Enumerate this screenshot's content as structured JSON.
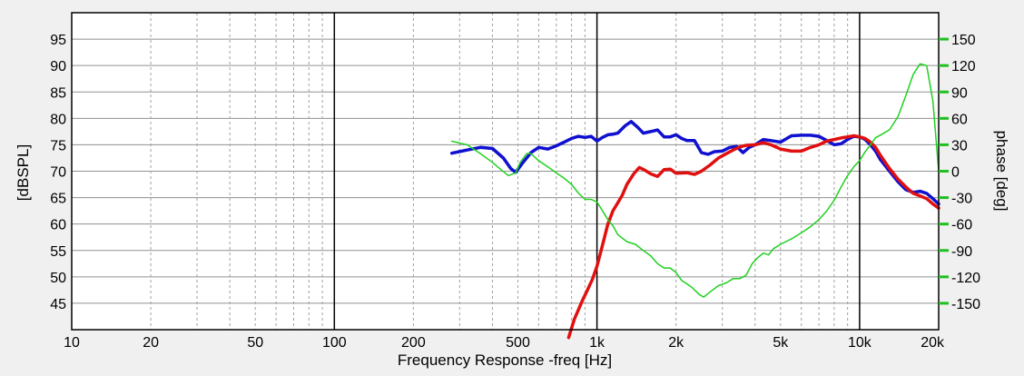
{
  "chart_data": {
    "type": "line",
    "title": "",
    "xlabel": "Frequency Response -freq [Hz]",
    "ylabel": "[dBSPL]",
    "y2label": "phase [deg]",
    "xscale": "log",
    "xlim": [
      10,
      20000
    ],
    "ylim": [
      40,
      100
    ],
    "y2lim": [
      -180,
      180
    ],
    "x_ticks": [
      {
        "value": 10,
        "label": "10"
      },
      {
        "value": 20,
        "label": "20"
      },
      {
        "value": 50,
        "label": "50"
      },
      {
        "value": 100,
        "label": "100"
      },
      {
        "value": 200,
        "label": "200"
      },
      {
        "value": 500,
        "label": "500"
      },
      {
        "value": 1000,
        "label": "1k"
      },
      {
        "value": 2000,
        "label": "2k"
      },
      {
        "value": 5000,
        "label": "5k"
      },
      {
        "value": 10000,
        "label": "10k"
      },
      {
        "value": 20000,
        "label": "20k"
      }
    ],
    "y_ticks": [
      {
        "value": 45,
        "label": "45"
      },
      {
        "value": 50,
        "label": "50"
      },
      {
        "value": 55,
        "label": "55"
      },
      {
        "value": 60,
        "label": "60"
      },
      {
        "value": 65,
        "label": "65"
      },
      {
        "value": 70,
        "label": "70"
      },
      {
        "value": 75,
        "label": "75"
      },
      {
        "value": 80,
        "label": "80"
      },
      {
        "value": 85,
        "label": "85"
      },
      {
        "value": 90,
        "label": "90"
      },
      {
        "value": 95,
        "label": "95"
      }
    ],
    "y2_ticks": [
      {
        "value": 150,
        "label": "150"
      },
      {
        "value": 120,
        "label": "120"
      },
      {
        "value": 90,
        "label": "90"
      },
      {
        "value": 60,
        "label": "60"
      },
      {
        "value": 30,
        "label": "30"
      },
      {
        "value": 0,
        "label": "0"
      },
      {
        "value": -30,
        "label": "-30"
      },
      {
        "value": -60,
        "label": "-60"
      },
      {
        "value": -90,
        "label": "-90"
      },
      {
        "value": -120,
        "label": "-120"
      },
      {
        "value": -150,
        "label": "-150"
      }
    ],
    "series": [
      {
        "name": "SPL (blue)",
        "axis": "left",
        "color": "#1010d0",
        "width": 3.5,
        "points": [
          [
            280,
            73.4
          ],
          [
            320,
            74
          ],
          [
            360,
            74.5
          ],
          [
            400,
            74.3
          ],
          [
            440,
            72.5
          ],
          [
            470,
            70.5
          ],
          [
            490,
            69.8
          ],
          [
            520,
            71.5
          ],
          [
            560,
            73.5
          ],
          [
            600,
            74.5
          ],
          [
            650,
            74.2
          ],
          [
            700,
            74.8
          ],
          [
            750,
            75.5
          ],
          [
            800,
            76.2
          ],
          [
            850,
            76.6
          ],
          [
            900,
            76.4
          ],
          [
            950,
            76.6
          ],
          [
            1000,
            75.7
          ],
          [
            1050,
            76.4
          ],
          [
            1100,
            76.9
          ],
          [
            1150,
            77
          ],
          [
            1200,
            77.2
          ],
          [
            1280,
            78.6
          ],
          [
            1350,
            79.4
          ],
          [
            1430,
            78.3
          ],
          [
            1500,
            77.2
          ],
          [
            1600,
            77.5
          ],
          [
            1700,
            77.8
          ],
          [
            1800,
            76.5
          ],
          [
            1900,
            76.5
          ],
          [
            2000,
            76.9
          ],
          [
            2100,
            76.2
          ],
          [
            2200,
            75.8
          ],
          [
            2350,
            75.8
          ],
          [
            2500,
            73.5
          ],
          [
            2650,
            73.2
          ],
          [
            2800,
            73.7
          ],
          [
            3000,
            73.8
          ],
          [
            3200,
            74.5
          ],
          [
            3400,
            74.7
          ],
          [
            3600,
            73.5
          ],
          [
            3800,
            74.5
          ],
          [
            4000,
            75
          ],
          [
            4300,
            76
          ],
          [
            4600,
            75.8
          ],
          [
            5000,
            75.5
          ],
          [
            5500,
            76.7
          ],
          [
            6000,
            76.8
          ],
          [
            6500,
            76.8
          ],
          [
            7000,
            76.6
          ],
          [
            7500,
            75.8
          ],
          [
            8000,
            75
          ],
          [
            8500,
            75.2
          ],
          [
            9000,
            76
          ],
          [
            9500,
            76.6
          ],
          [
            10000,
            76.5
          ],
          [
            10500,
            76
          ],
          [
            11000,
            75
          ],
          [
            11500,
            73.8
          ],
          [
            12000,
            72.2
          ],
          [
            13000,
            70
          ],
          [
            14000,
            68
          ],
          [
            15000,
            66.5
          ],
          [
            16000,
            66
          ],
          [
            17000,
            66.2
          ],
          [
            18000,
            65.8
          ],
          [
            19000,
            64.8
          ],
          [
            20000,
            63.8
          ]
        ]
      },
      {
        "name": "SPL (red)",
        "axis": "left",
        "color": "#e01010",
        "width": 3.5,
        "points": [
          [
            780,
            38.5
          ],
          [
            820,
            42
          ],
          [
            880,
            45.5
          ],
          [
            920,
            47.5
          ],
          [
            960,
            49.5
          ],
          [
            1000,
            52
          ],
          [
            1050,
            56
          ],
          [
            1100,
            60
          ],
          [
            1150,
            62.5
          ],
          [
            1200,
            64
          ],
          [
            1250,
            65.5
          ],
          [
            1300,
            67.5
          ],
          [
            1380,
            69.5
          ],
          [
            1450,
            70.7
          ],
          [
            1520,
            70.2
          ],
          [
            1600,
            69.5
          ],
          [
            1700,
            69
          ],
          [
            1800,
            70.3
          ],
          [
            1900,
            70.4
          ],
          [
            2000,
            69.6
          ],
          [
            2200,
            69.7
          ],
          [
            2350,
            69.4
          ],
          [
            2500,
            70
          ],
          [
            2700,
            71.2
          ],
          [
            2900,
            72.5
          ],
          [
            3100,
            73.3
          ],
          [
            3300,
            74
          ],
          [
            3500,
            74.6
          ],
          [
            3700,
            74.9
          ],
          [
            4000,
            75
          ],
          [
            4300,
            75.4
          ],
          [
            4600,
            75
          ],
          [
            5000,
            74.2
          ],
          [
            5500,
            73.8
          ],
          [
            6000,
            73.8
          ],
          [
            6500,
            74.5
          ],
          [
            7000,
            75
          ],
          [
            7500,
            75.7
          ],
          [
            8000,
            76
          ],
          [
            8500,
            76.3
          ],
          [
            9000,
            76.5
          ],
          [
            9500,
            76.7
          ],
          [
            10000,
            76.5
          ],
          [
            10500,
            76.2
          ],
          [
            11000,
            75.5
          ],
          [
            11500,
            74.5
          ],
          [
            12000,
            73
          ],
          [
            13000,
            70.5
          ],
          [
            14000,
            68.5
          ],
          [
            15000,
            67
          ],
          [
            16000,
            65.8
          ],
          [
            17000,
            65.3
          ],
          [
            18000,
            64.8
          ],
          [
            19000,
            63.8
          ],
          [
            20000,
            63
          ]
        ]
      },
      {
        "name": "phase (green)",
        "axis": "right",
        "color": "#20d020",
        "width": 1.5,
        "points": [
          [
            280,
            34
          ],
          [
            320,
            30
          ],
          [
            360,
            20
          ],
          [
            400,
            10
          ],
          [
            430,
            2
          ],
          [
            460,
            -5
          ],
          [
            490,
            -2
          ],
          [
            510,
            10
          ],
          [
            540,
            20
          ],
          [
            560,
            20
          ],
          [
            600,
            12
          ],
          [
            650,
            5
          ],
          [
            700,
            -2
          ],
          [
            750,
            -8
          ],
          [
            800,
            -15
          ],
          [
            850,
            -25
          ],
          [
            900,
            -32
          ],
          [
            950,
            -32
          ],
          [
            1000,
            -35
          ],
          [
            1050,
            -45
          ],
          [
            1100,
            -55
          ],
          [
            1150,
            -62
          ],
          [
            1200,
            -72
          ],
          [
            1300,
            -80
          ],
          [
            1400,
            -83
          ],
          [
            1500,
            -90
          ],
          [
            1600,
            -96
          ],
          [
            1700,
            -105
          ],
          [
            1800,
            -110
          ],
          [
            1900,
            -110
          ],
          [
            2000,
            -115
          ],
          [
            2100,
            -124
          ],
          [
            2200,
            -128
          ],
          [
            2300,
            -132
          ],
          [
            2450,
            -140
          ],
          [
            2550,
            -143
          ],
          [
            2700,
            -137
          ],
          [
            2900,
            -130
          ],
          [
            3100,
            -127
          ],
          [
            3300,
            -122
          ],
          [
            3500,
            -122
          ],
          [
            3700,
            -118
          ],
          [
            3900,
            -105
          ],
          [
            4100,
            -98
          ],
          [
            4300,
            -93
          ],
          [
            4500,
            -95
          ],
          [
            4700,
            -88
          ],
          [
            5000,
            -83
          ],
          [
            5500,
            -77
          ],
          [
            6000,
            -70
          ],
          [
            6500,
            -63
          ],
          [
            7000,
            -55
          ],
          [
            7500,
            -45
          ],
          [
            8000,
            -33
          ],
          [
            8500,
            -18
          ],
          [
            9000,
            -5
          ],
          [
            9500,
            5
          ],
          [
            10000,
            12
          ],
          [
            10500,
            22
          ],
          [
            11000,
            30
          ],
          [
            11500,
            38
          ],
          [
            12000,
            41
          ],
          [
            13000,
            47
          ],
          [
            14000,
            62
          ],
          [
            15000,
            86
          ],
          [
            16000,
            110
          ],
          [
            17000,
            122
          ],
          [
            18000,
            120
          ],
          [
            19000,
            80
          ],
          [
            20000,
            0
          ]
        ]
      }
    ]
  }
}
